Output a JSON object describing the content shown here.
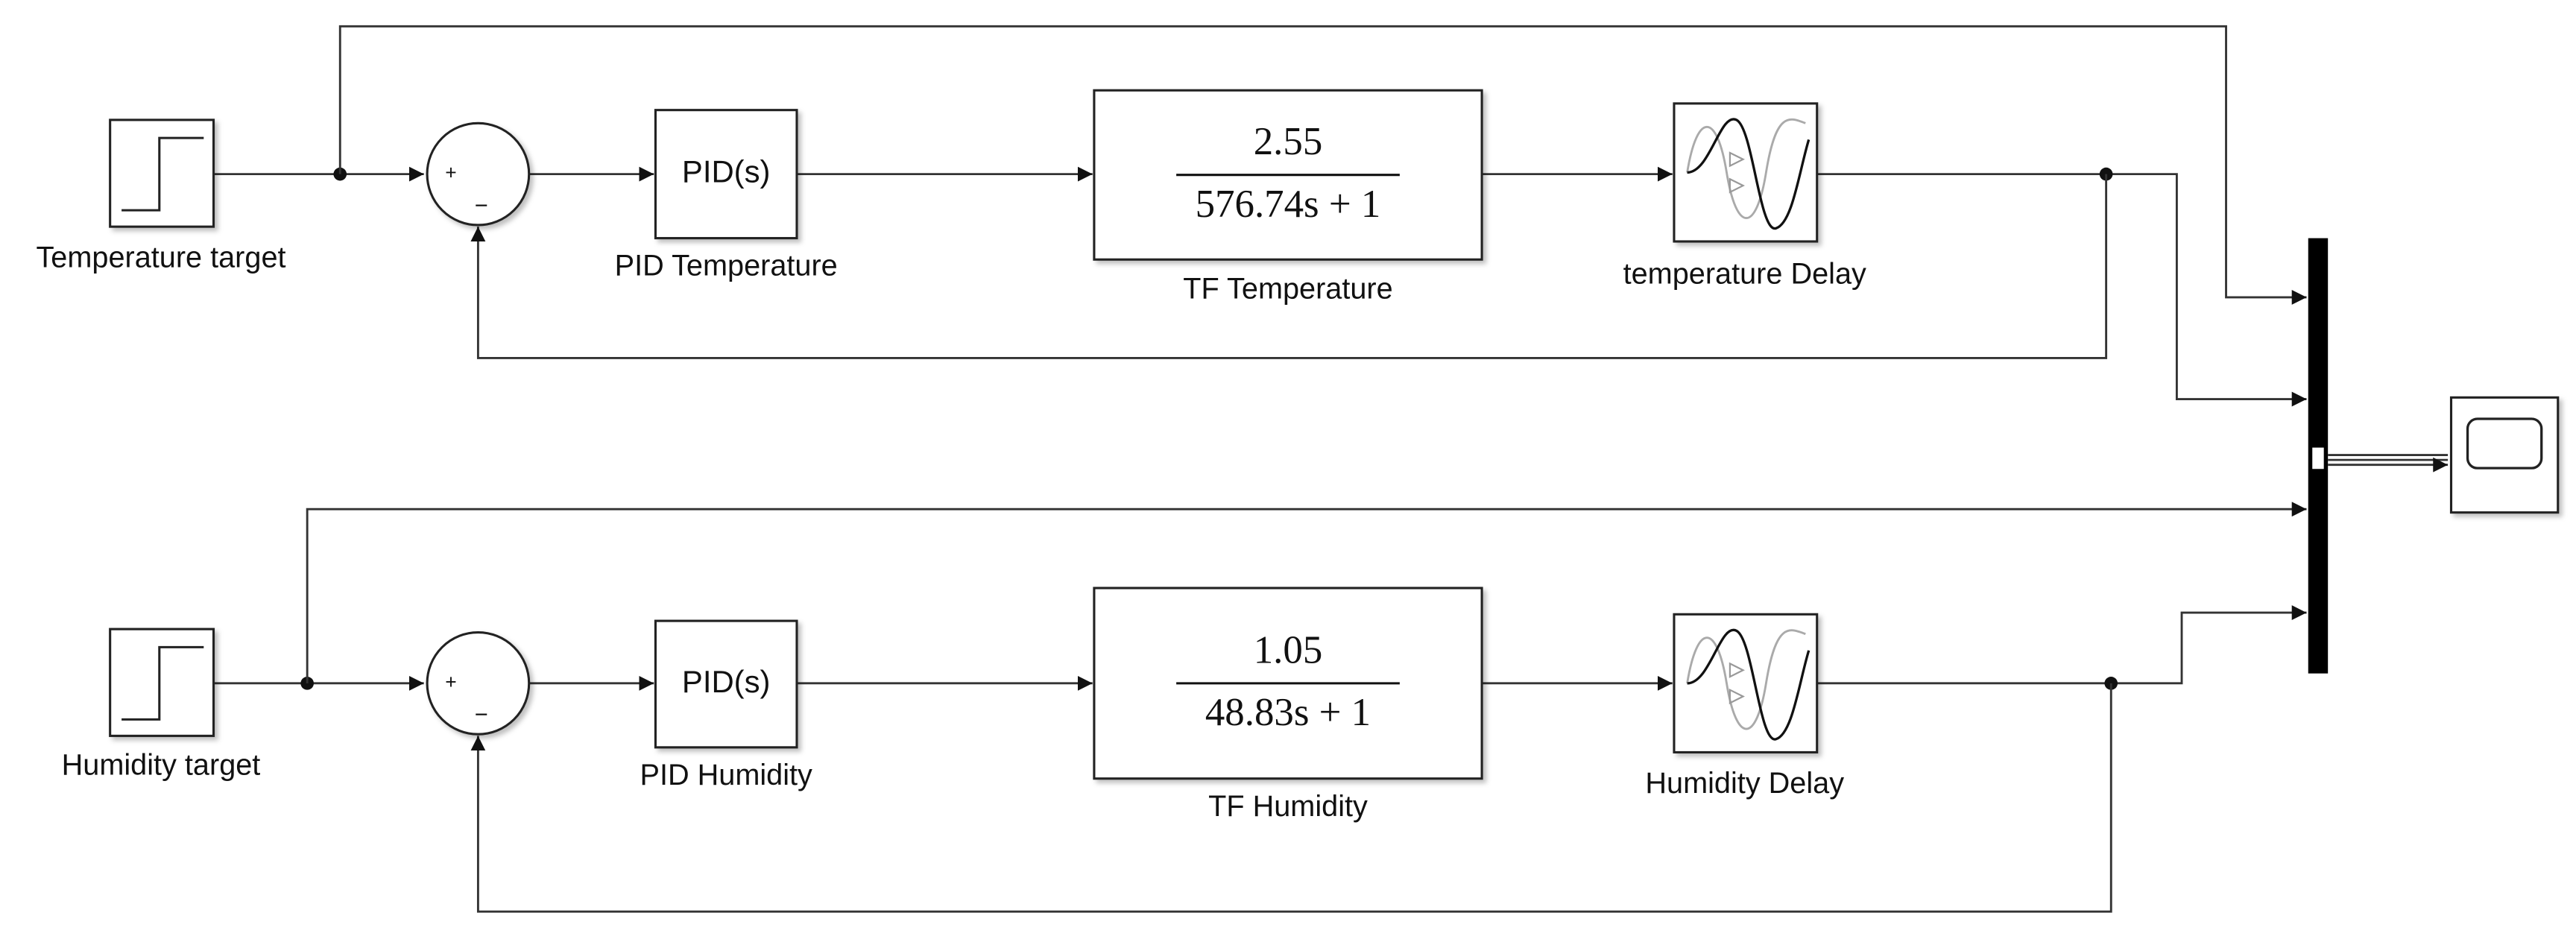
{
  "loops": [
    {
      "step_label": "Temperature target",
      "sum_plus": "+",
      "sum_minus": "−",
      "pid_text": "PID(s)",
      "pid_label": "PID Temperature",
      "tf_numerator": "2.55",
      "tf_denominator": "576.74s + 1",
      "tf_label": "TF Temperature",
      "delay_label": "temperature Delay"
    },
    {
      "step_label": "Humidity target",
      "sum_plus": "+",
      "sum_minus": "−",
      "pid_text": "PID(s)",
      "pid_label": "PID Humidity",
      "tf_numerator": "1.05",
      "tf_denominator": "48.83s + 1",
      "tf_label": "TF Humidity",
      "delay_label": "Humidity Delay"
    }
  ]
}
